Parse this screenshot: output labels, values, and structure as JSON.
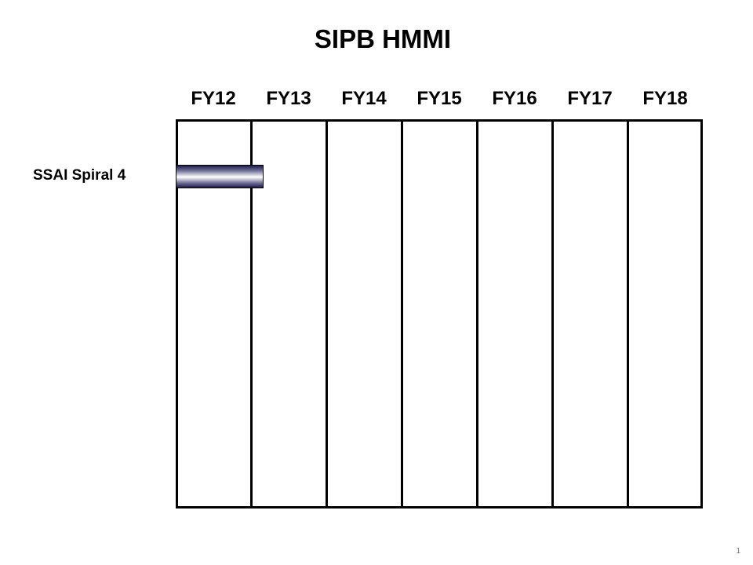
{
  "title": "SIPB HMMI",
  "page_number": "1",
  "chart_data": {
    "type": "gantt",
    "title": "SIPB HMMI",
    "categories": [
      "FY12",
      "FY13",
      "FY14",
      "FY15",
      "FY16",
      "FY17",
      "FY18"
    ],
    "tasks": [
      {
        "name": "SSAI Spiral 4",
        "start": 0,
        "end": 1.15
      }
    ],
    "grid": true,
    "colors": {
      "bar_dark": "#1c1c4c",
      "bar_light": "#ffffff",
      "lines": "#000000"
    }
  }
}
